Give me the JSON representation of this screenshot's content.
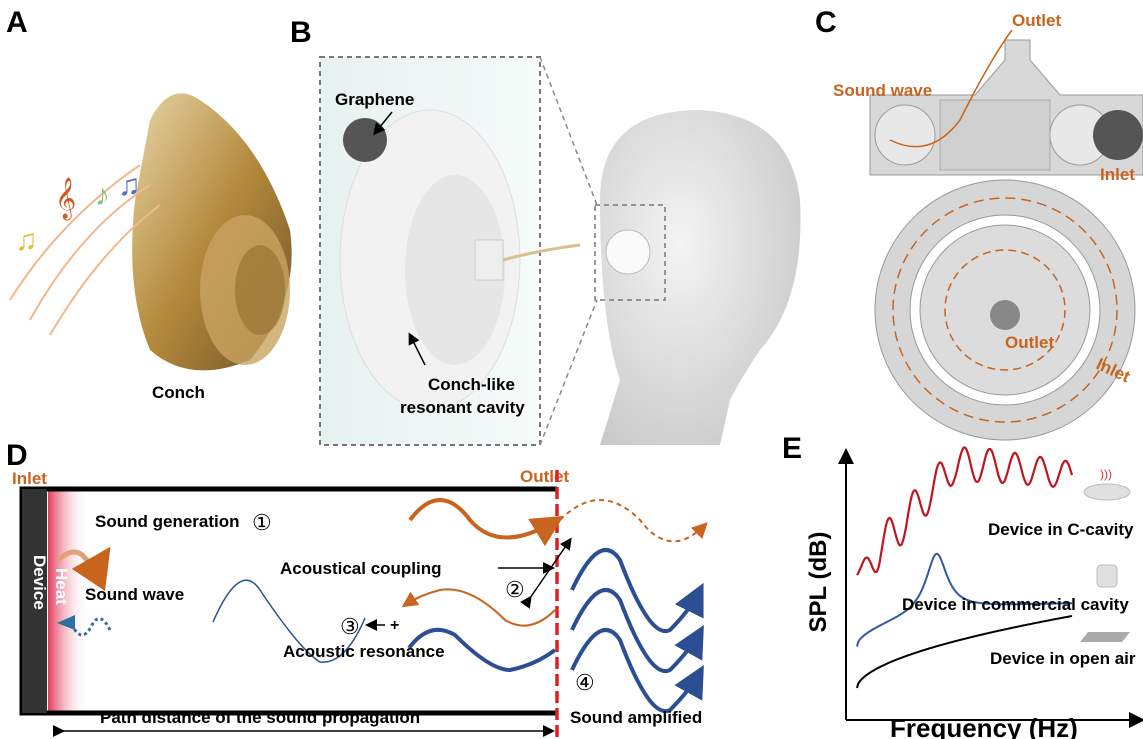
{
  "panels": {
    "a": {
      "label": "A",
      "caption": "Conch"
    },
    "b": {
      "label": "B",
      "graphene": "Graphene",
      "cavity_line1": "Conch-like",
      "cavity_line2": "resonant cavity"
    },
    "c": {
      "label": "C",
      "top_outlet": "Outlet",
      "sound_wave": "Sound wave",
      "top_inlet": "Inlet",
      "spiral_outlet": "Outlet",
      "spiral_inlet": "Inlet"
    },
    "d": {
      "label": "D",
      "inlet": "Inlet",
      "outlet": "Outlet",
      "device": "Device",
      "heat": "Heat",
      "sound_wave": "Sound wave",
      "sound_generation": "Sound generation",
      "step1": "①",
      "acoustical_coupling": "Acoustical coupling",
      "step2": "②",
      "plus": "+",
      "step3": "③",
      "acoustic_resonance": "Acoustic resonance",
      "step4": "④",
      "path_distance": "Path distance of the sound propagation",
      "sound_amplified": "Sound amplified"
    },
    "e": {
      "label": "E",
      "ylabel": "SPL (dB)",
      "xlabel": "Frequency (Hz)",
      "series": [
        {
          "name": "Device in C-cavity",
          "color": "#c0141e"
        },
        {
          "name": "Device in commercial cavity",
          "color": "#2f5aa0"
        },
        {
          "name": "Device in open air",
          "color": "#000000"
        }
      ]
    }
  },
  "colors": {
    "orange": "#c8641e",
    "blue": "#2c4f93",
    "red_dash": "#e02020",
    "heat": "#e8506a"
  }
}
